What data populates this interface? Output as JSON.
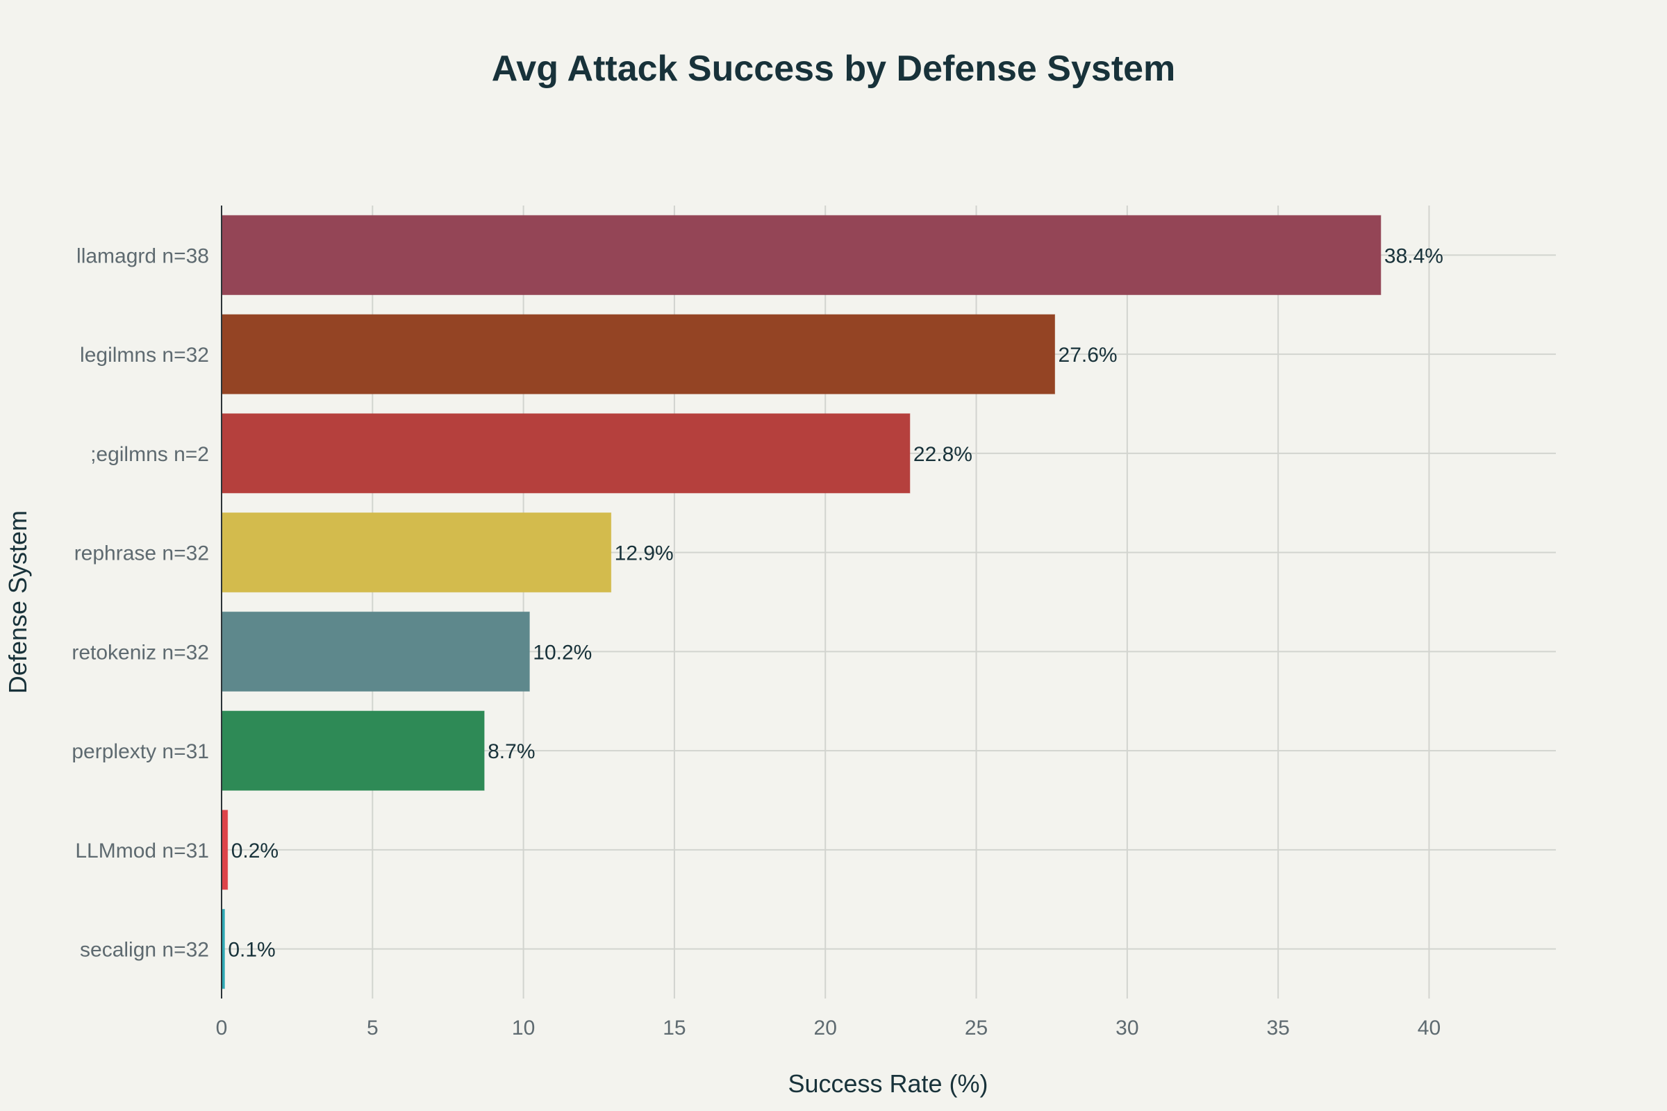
{
  "chart_data": {
    "type": "bar",
    "orientation": "horizontal",
    "title": "Avg Attack Success by Defense System",
    "xlabel": "Success Rate (%)",
    "ylabel": "Defense System",
    "xlim": [
      0,
      44.2
    ],
    "xticks": [
      0,
      5,
      10,
      15,
      20,
      25,
      30,
      35,
      40
    ],
    "grid": true,
    "legend": "none",
    "categories": [
      "llamagrd n=38",
      "legilmns n=32",
      ";egilmns n=2",
      "rephrase n=32",
      "retokeniz n=32",
      "perplexty n=31",
      "LLMmod n=31",
      "secalign n=32"
    ],
    "values": [
      38.4,
      27.6,
      22.8,
      12.9,
      10.2,
      8.7,
      0.2,
      0.1
    ],
    "data_labels": [
      "38.4%",
      "27.6%",
      "22.8%",
      "12.9%",
      "10.2%",
      "8.7%",
      "0.2%",
      "0.1%"
    ],
    "colors": [
      "#944556",
      "#944424",
      "#b5403d",
      "#d3bb4d",
      "#5e888c",
      "#2e8a56",
      "#dd4349",
      "#2fa8b5"
    ]
  }
}
